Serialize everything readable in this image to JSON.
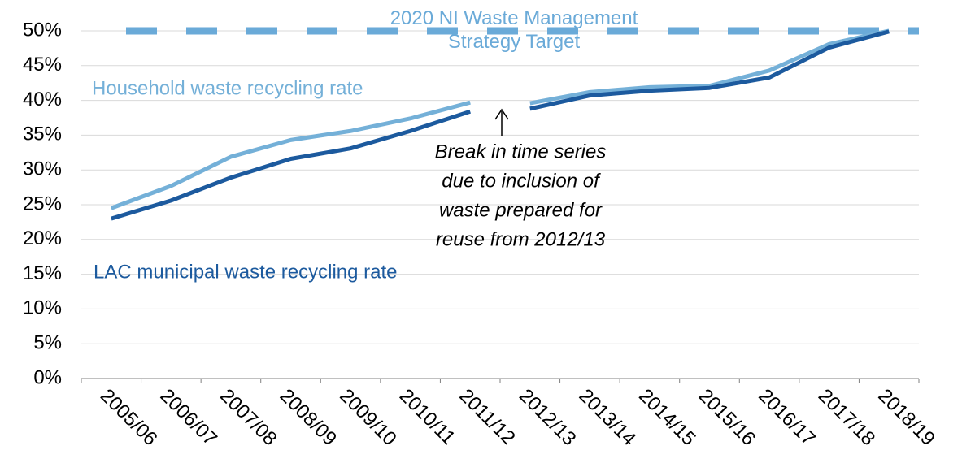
{
  "chart_data": {
    "type": "line",
    "categories": [
      "2005/06",
      "2006/07",
      "2007/08",
      "2008/09",
      "2009/10",
      "2010/11",
      "2011/12",
      "2012/13",
      "2013/14",
      "2014/15",
      "2015/16",
      "2016/17",
      "2017/18",
      "2018/19"
    ],
    "break_before": "2012/13",
    "series": [
      {
        "name": "Household waste recycling rate",
        "color": "#74b0d8",
        "values": [
          24.5,
          27.7,
          31.9,
          34.3,
          35.6,
          37.4,
          39.7,
          39.6,
          41.2,
          41.9,
          42.1,
          44.3,
          48.1,
          50.0
        ]
      },
      {
        "name": "LAC municipal waste recycling rate",
        "color": "#1c5a9e",
        "values": [
          23.0,
          25.6,
          28.9,
          31.6,
          33.1,
          35.6,
          38.4,
          38.8,
          40.7,
          41.4,
          41.8,
          43.3,
          47.6,
          49.9
        ]
      }
    ],
    "target": {
      "name": "2020 NI Waste Management Strategy Target",
      "value": 50,
      "color": "#6aaad8",
      "dashed": true
    },
    "annotation_lines": [
      "Break in time series",
      "due to inclusion of",
      "waste prepared for",
      "reuse from 2012/13"
    ],
    "ylim": [
      0,
      50
    ],
    "yticks": [
      {
        "value": 0,
        "label": "0%"
      },
      {
        "value": 5,
        "label": "5%"
      },
      {
        "value": 10,
        "label": "10%"
      },
      {
        "value": 15,
        "label": "15%"
      },
      {
        "value": 20,
        "label": "20%"
      },
      {
        "value": 25,
        "label": "25%"
      },
      {
        "value": 30,
        "label": "30%"
      },
      {
        "value": 35,
        "label": "35%"
      },
      {
        "value": 40,
        "label": "40%"
      },
      {
        "value": 45,
        "label": "45%"
      },
      {
        "value": 50,
        "label": "50%"
      }
    ],
    "grid": true
  }
}
